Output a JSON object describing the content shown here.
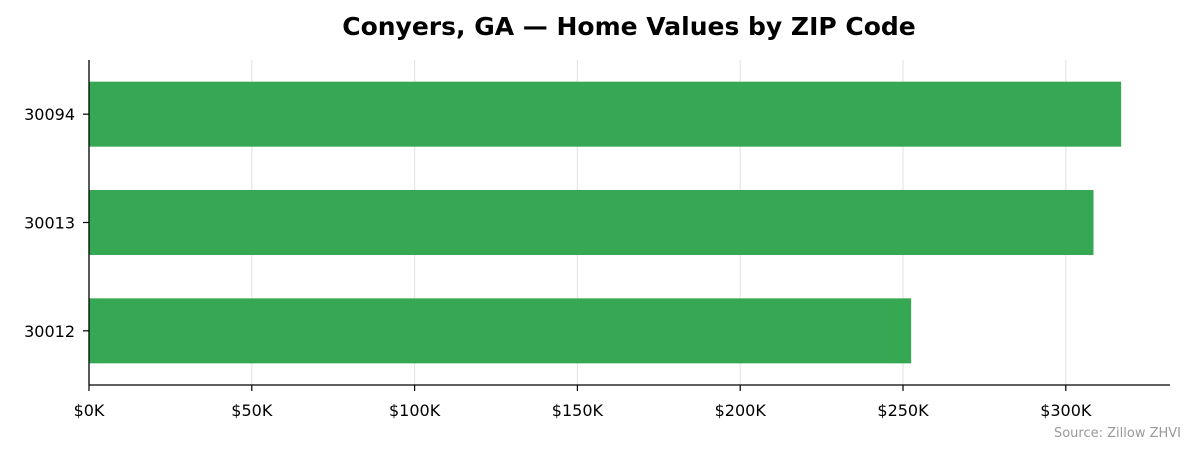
{
  "chart_data": {
    "type": "bar",
    "orientation": "horizontal",
    "title": "Conyers, GA — Home Values by ZIP Code",
    "xlabel": "",
    "ylabel": "",
    "categories": [
      "30094",
      "30013",
      "30012"
    ],
    "values": [
      317000,
      308500,
      252500
    ],
    "xlim": [
      0,
      332000
    ],
    "x_ticks": [
      0,
      50000,
      100000,
      150000,
      200000,
      250000,
      300000
    ],
    "x_tick_labels": [
      "$0K",
      "$50K",
      "$100K",
      "$150K",
      "$200K",
      "$250K",
      "$300K"
    ],
    "grid": "vertical",
    "legend": "none",
    "bar_color": "#36a853",
    "source": "Source: Zillow ZHVI"
  }
}
